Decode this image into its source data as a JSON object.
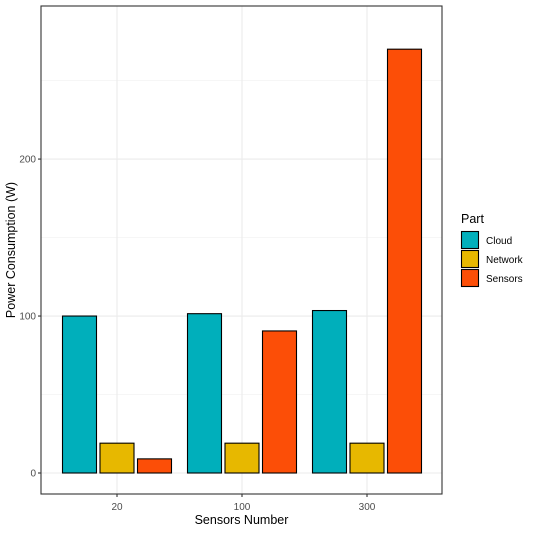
{
  "chart_data": {
    "type": "bar",
    "xlabel": "Sensors Number",
    "ylabel": "Power Consumption (W)",
    "categories": [
      "20",
      "100",
      "300"
    ],
    "series": [
      {
        "name": "Cloud",
        "values": [
          100,
          101.5,
          103.5
        ],
        "color": "#00AFBB"
      },
      {
        "name": "Network",
        "values": [
          19,
          19,
          19
        ],
        "color": "#E7B800"
      },
      {
        "name": "Sensors",
        "values": [
          9,
          90.5,
          270
        ],
        "color": "#FC4E07"
      }
    ],
    "ylim": [
      0,
      283.5
    ],
    "yticks": [
      0,
      100,
      200
    ],
    "grid": true,
    "legend": {
      "title": "Part",
      "position": "right"
    }
  }
}
